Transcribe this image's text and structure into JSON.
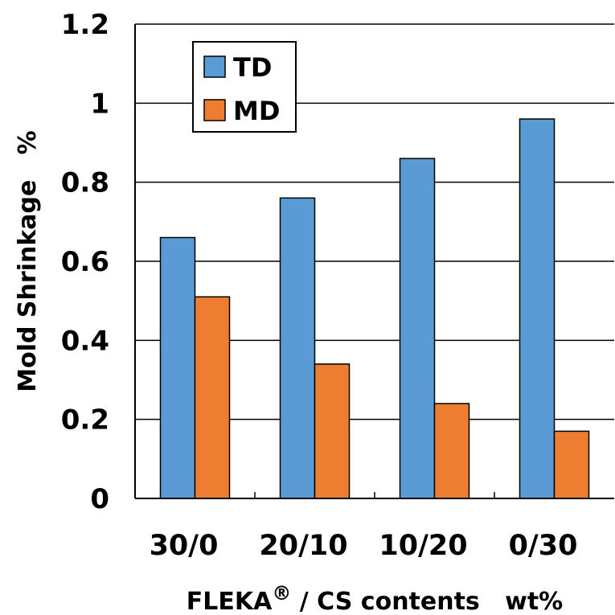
{
  "chart_data": {
    "type": "bar",
    "categories": [
      "30/0",
      "20/10",
      "10/20",
      "0/30"
    ],
    "series": [
      {
        "name": "TD",
        "values": [
          0.66,
          0.76,
          0.86,
          0.96
        ],
        "color": "#5b9bd5"
      },
      {
        "name": "MD",
        "values": [
          0.51,
          0.34,
          0.24,
          0.17
        ],
        "color": "#ed7d31"
      }
    ],
    "title": "",
    "xlabel": {
      "main": "FLEKA",
      "superscript": "®",
      "rest": " / CS contents   wt%"
    },
    "ylabel": "Mold Shrinkage   %",
    "ylim": [
      0,
      1.2
    ],
    "yticks": [
      "0",
      "0.2",
      "0.4",
      "0.6",
      "0.8",
      "1",
      "1.2"
    ],
    "grid": true,
    "legend_position": "top-left"
  }
}
